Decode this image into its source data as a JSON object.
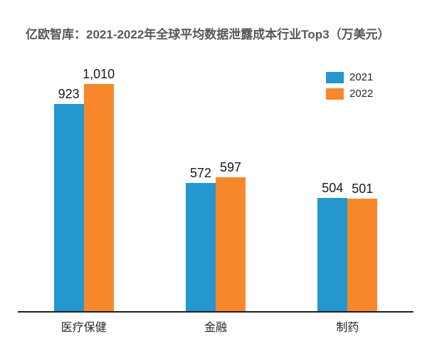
{
  "page": {
    "background": "#ffffff"
  },
  "title": {
    "text": "亿欧智库：2021-2022年全球平均数据泄露成本行业Top3（万美元）",
    "color": "#595657"
  },
  "legend": {
    "position": "top-right",
    "items": [
      {
        "label": "2021",
        "color": "#2497ce"
      },
      {
        "label": "2022",
        "color": "#f6882b"
      }
    ]
  },
  "chart_data": {
    "type": "bar",
    "title": "亿欧智库：2021-2022年全球平均数据泄露成本行业Top3（万美元）",
    "categories": [
      "医疗保健",
      "金融",
      "制药"
    ],
    "series": [
      {
        "name": "2021",
        "color": "#2497ce",
        "values": [
          923,
          572,
          504
        ],
        "labels": [
          "923",
          "572",
          "504"
        ]
      },
      {
        "name": "2022",
        "color": "#f6882b",
        "values": [
          1010,
          597,
          501
        ],
        "labels": [
          "1,010",
          "597",
          "501"
        ]
      }
    ],
    "xlabel": "",
    "ylabel": "",
    "ylim": [
      0,
      1100
    ],
    "grid": false,
    "value_labels_shown": true,
    "legend_position": "top-right",
    "axis_line_color": "#1f1f1f",
    "value_label_color": "#1a1a1a",
    "category_label_color": "#262626"
  }
}
